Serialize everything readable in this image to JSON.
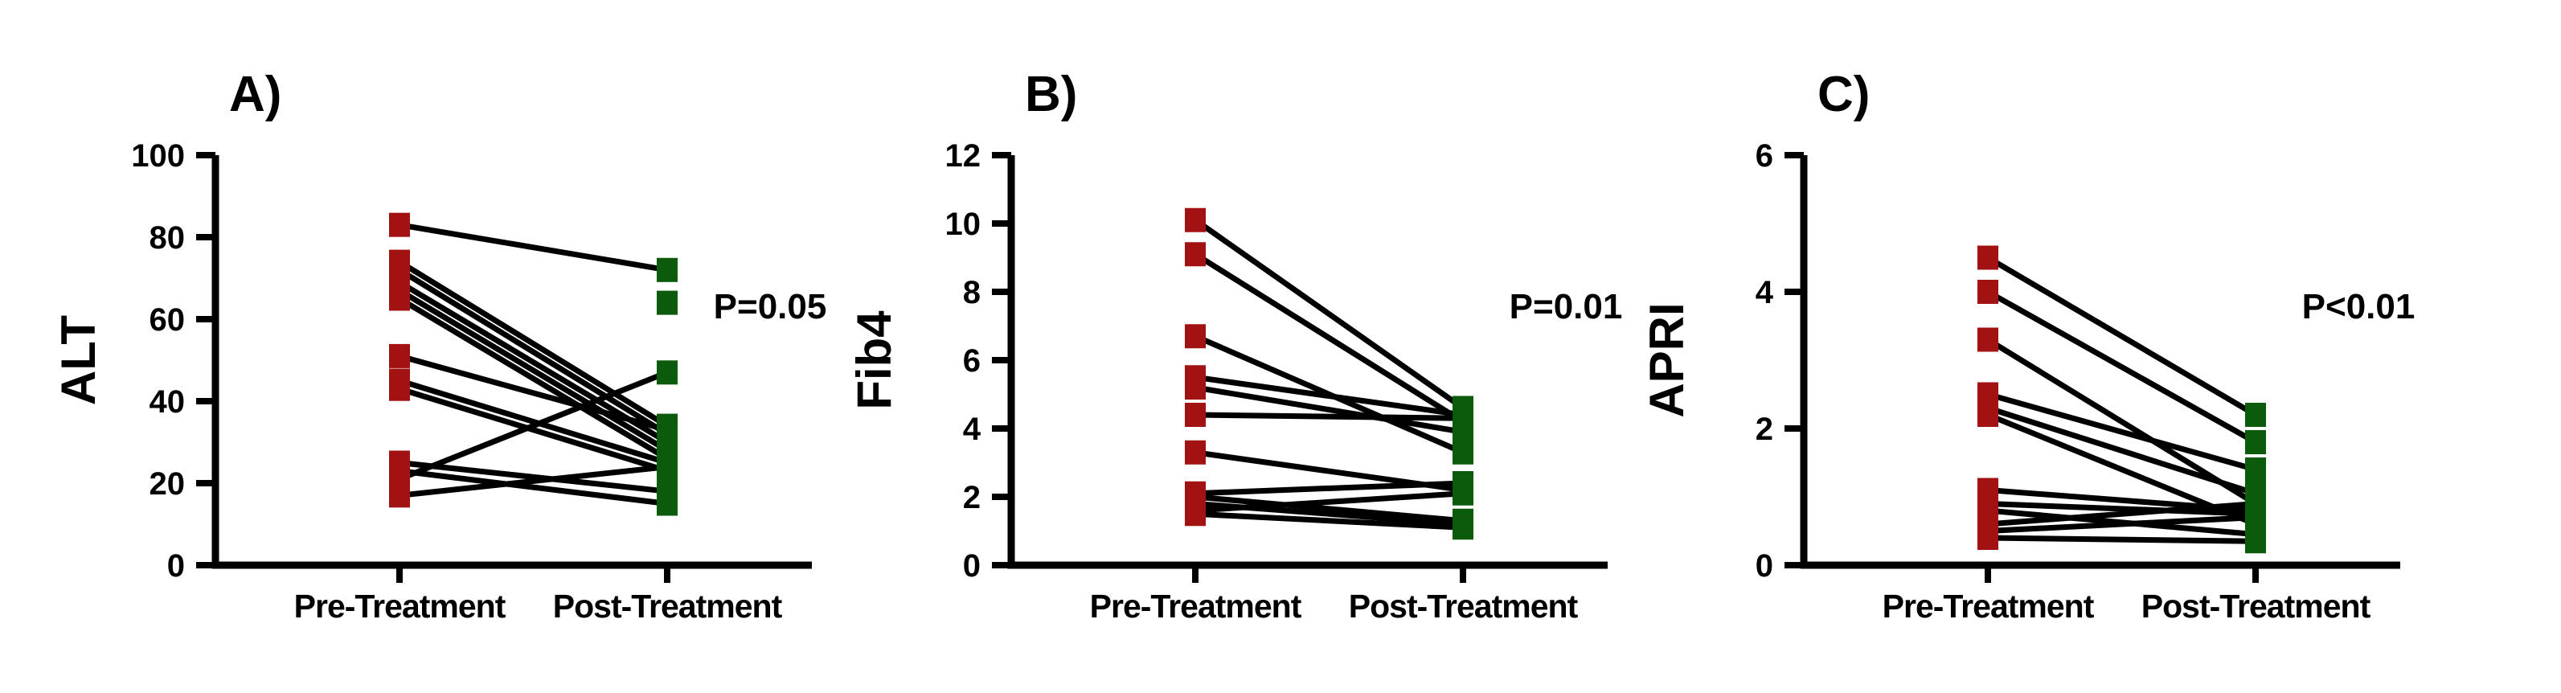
{
  "figure": {
    "background": "#FFFFFF",
    "kind": "paired pre/post treatment slopegraph, 3 panels",
    "categories": [
      "Pre-Treatment",
      "Post-Treatment"
    ]
  },
  "colors": {
    "pre_marker": "#A31212",
    "post_marker": "#0C5A0C",
    "pair_line": "#000000",
    "axis": "#000000",
    "text": "#000000"
  },
  "chart_data": [
    {
      "type": "line",
      "variant": "paired-points-slopegraph",
      "panel_label": "A)",
      "ylabel": "ALT",
      "p_value_text": "P=0.05",
      "ylim": [
        0,
        100
      ],
      "yticks": [
        0,
        20,
        40,
        60,
        80,
        100
      ],
      "categories": [
        "Pre-Treatment",
        "Post-Treatment"
      ],
      "grid": "off",
      "legend": "none",
      "pairs": [
        [
          83,
          72
        ],
        [
          74,
          34
        ],
        [
          72,
          32
        ],
        [
          69,
          30
        ],
        [
          67,
          28
        ],
        [
          65,
          26
        ],
        [
          51,
          33
        ],
        [
          45,
          25
        ],
        [
          43,
          23
        ],
        [
          25,
          18
        ],
        [
          23,
          15
        ],
        [
          21,
          47
        ],
        [
          17,
          24
        ]
      ],
      "unpaired_post": [
        64
      ]
    },
    {
      "type": "line",
      "variant": "paired-points-slopegraph",
      "panel_label": "B)",
      "ylabel": "Fib4",
      "p_value_text": "P=0.01",
      "ylim": [
        0,
        12
      ],
      "yticks": [
        0,
        2,
        4,
        6,
        8,
        10,
        12
      ],
      "categories": [
        "Pre-Treatment",
        "Post-Treatment"
      ],
      "grid": "off",
      "legend": "none",
      "pairs": [
        [
          10.1,
          4.6
        ],
        [
          9.1,
          4.2
        ],
        [
          6.7,
          3.3
        ],
        [
          5.5,
          4.4
        ],
        [
          5.2,
          3.9
        ],
        [
          4.4,
          4.3
        ],
        [
          3.3,
          2.2
        ],
        [
          2.1,
          2.4
        ],
        [
          2.0,
          1.3
        ],
        [
          1.8,
          1.2
        ],
        [
          1.6,
          2.1
        ],
        [
          1.5,
          1.1
        ]
      ],
      "unpaired_post": []
    },
    {
      "type": "line",
      "variant": "paired-points-slopegraph",
      "panel_label": "C)",
      "ylabel": "APRI",
      "p_value_text": "P<0.01",
      "ylim": [
        0,
        6
      ],
      "yticks": [
        0,
        2,
        4,
        6
      ],
      "categories": [
        "Pre-Treatment",
        "Post-Treatment"
      ],
      "grid": "off",
      "legend": "none",
      "pairs": [
        [
          4.5,
          2.2
        ],
        [
          4.0,
          1.8
        ],
        [
          3.3,
          0.9
        ],
        [
          2.5,
          1.4
        ],
        [
          2.3,
          1.05
        ],
        [
          2.2,
          0.6
        ],
        [
          1.1,
          0.8
        ],
        [
          0.9,
          0.75
        ],
        [
          0.8,
          0.45
        ],
        [
          0.6,
          0.9
        ],
        [
          0.5,
          0.7
        ],
        [
          0.4,
          0.35
        ]
      ],
      "unpaired_post": []
    }
  ]
}
